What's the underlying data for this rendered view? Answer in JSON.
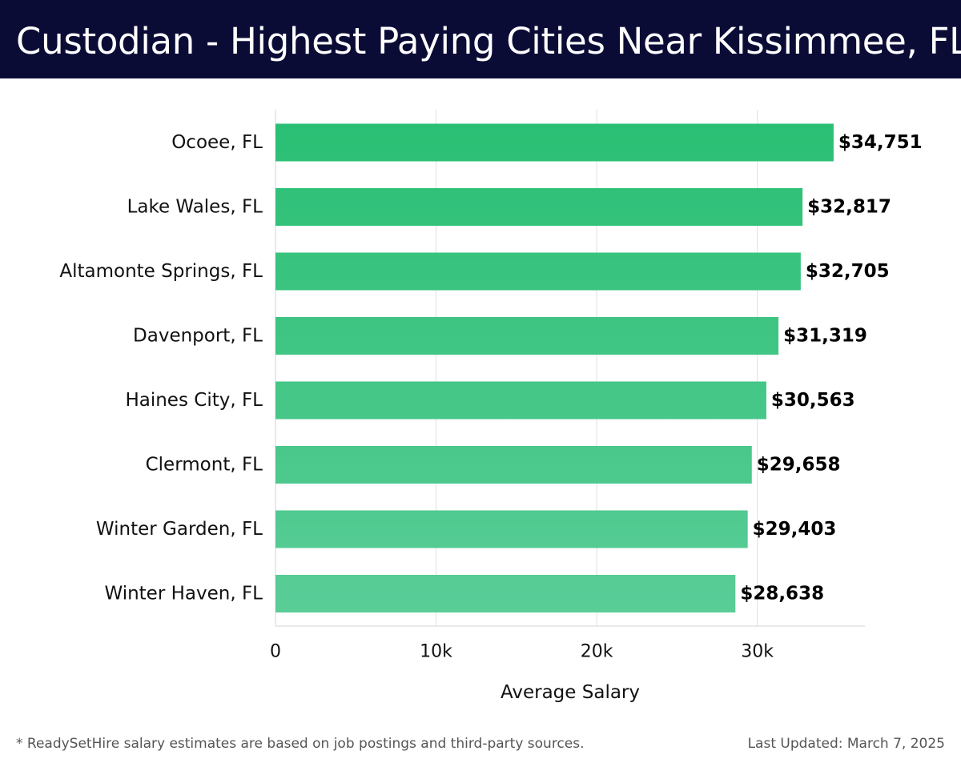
{
  "header": {
    "title": "Custodian - Highest Paying Cities Near Kissimmee, FL"
  },
  "colors": {
    "header_bg": "#0b0c36",
    "bar_top": "#2abf74",
    "bar_bottom": "#5acd97",
    "grid": "#e0e0e0",
    "axis": "#d6d6d6"
  },
  "chart_data": {
    "type": "bar",
    "orientation": "horizontal",
    "title": "Custodian - Highest Paying Cities Near Kissimmee, FL",
    "xlabel": "Average Salary",
    "ylabel": "",
    "categories": [
      "Ocoee, FL",
      "Lake Wales, FL",
      "Altamonte Springs, FL",
      "Davenport, FL",
      "Haines City, FL",
      "Clermont, FL",
      "Winter Garden, FL",
      "Winter Haven, FL"
    ],
    "values": [
      34751,
      32817,
      32705,
      31319,
      30563,
      29658,
      29403,
      28638
    ],
    "data_labels": [
      "$34,751",
      "$32,817",
      "$32,705",
      "$31,319",
      "$30,563",
      "$29,658",
      "$29,403",
      "$28,638"
    ],
    "xlim": [
      0,
      36700
    ],
    "xticks": [
      0,
      10000,
      20000,
      30000
    ],
    "xtick_labels": [
      "0",
      "10k",
      "20k",
      "30k"
    ],
    "grid": true,
    "legend": "none"
  },
  "footer": {
    "note": "* ReadySetHire salary estimates are based on job postings and third-party sources.",
    "updated": "Last Updated: March 7, 2025"
  }
}
